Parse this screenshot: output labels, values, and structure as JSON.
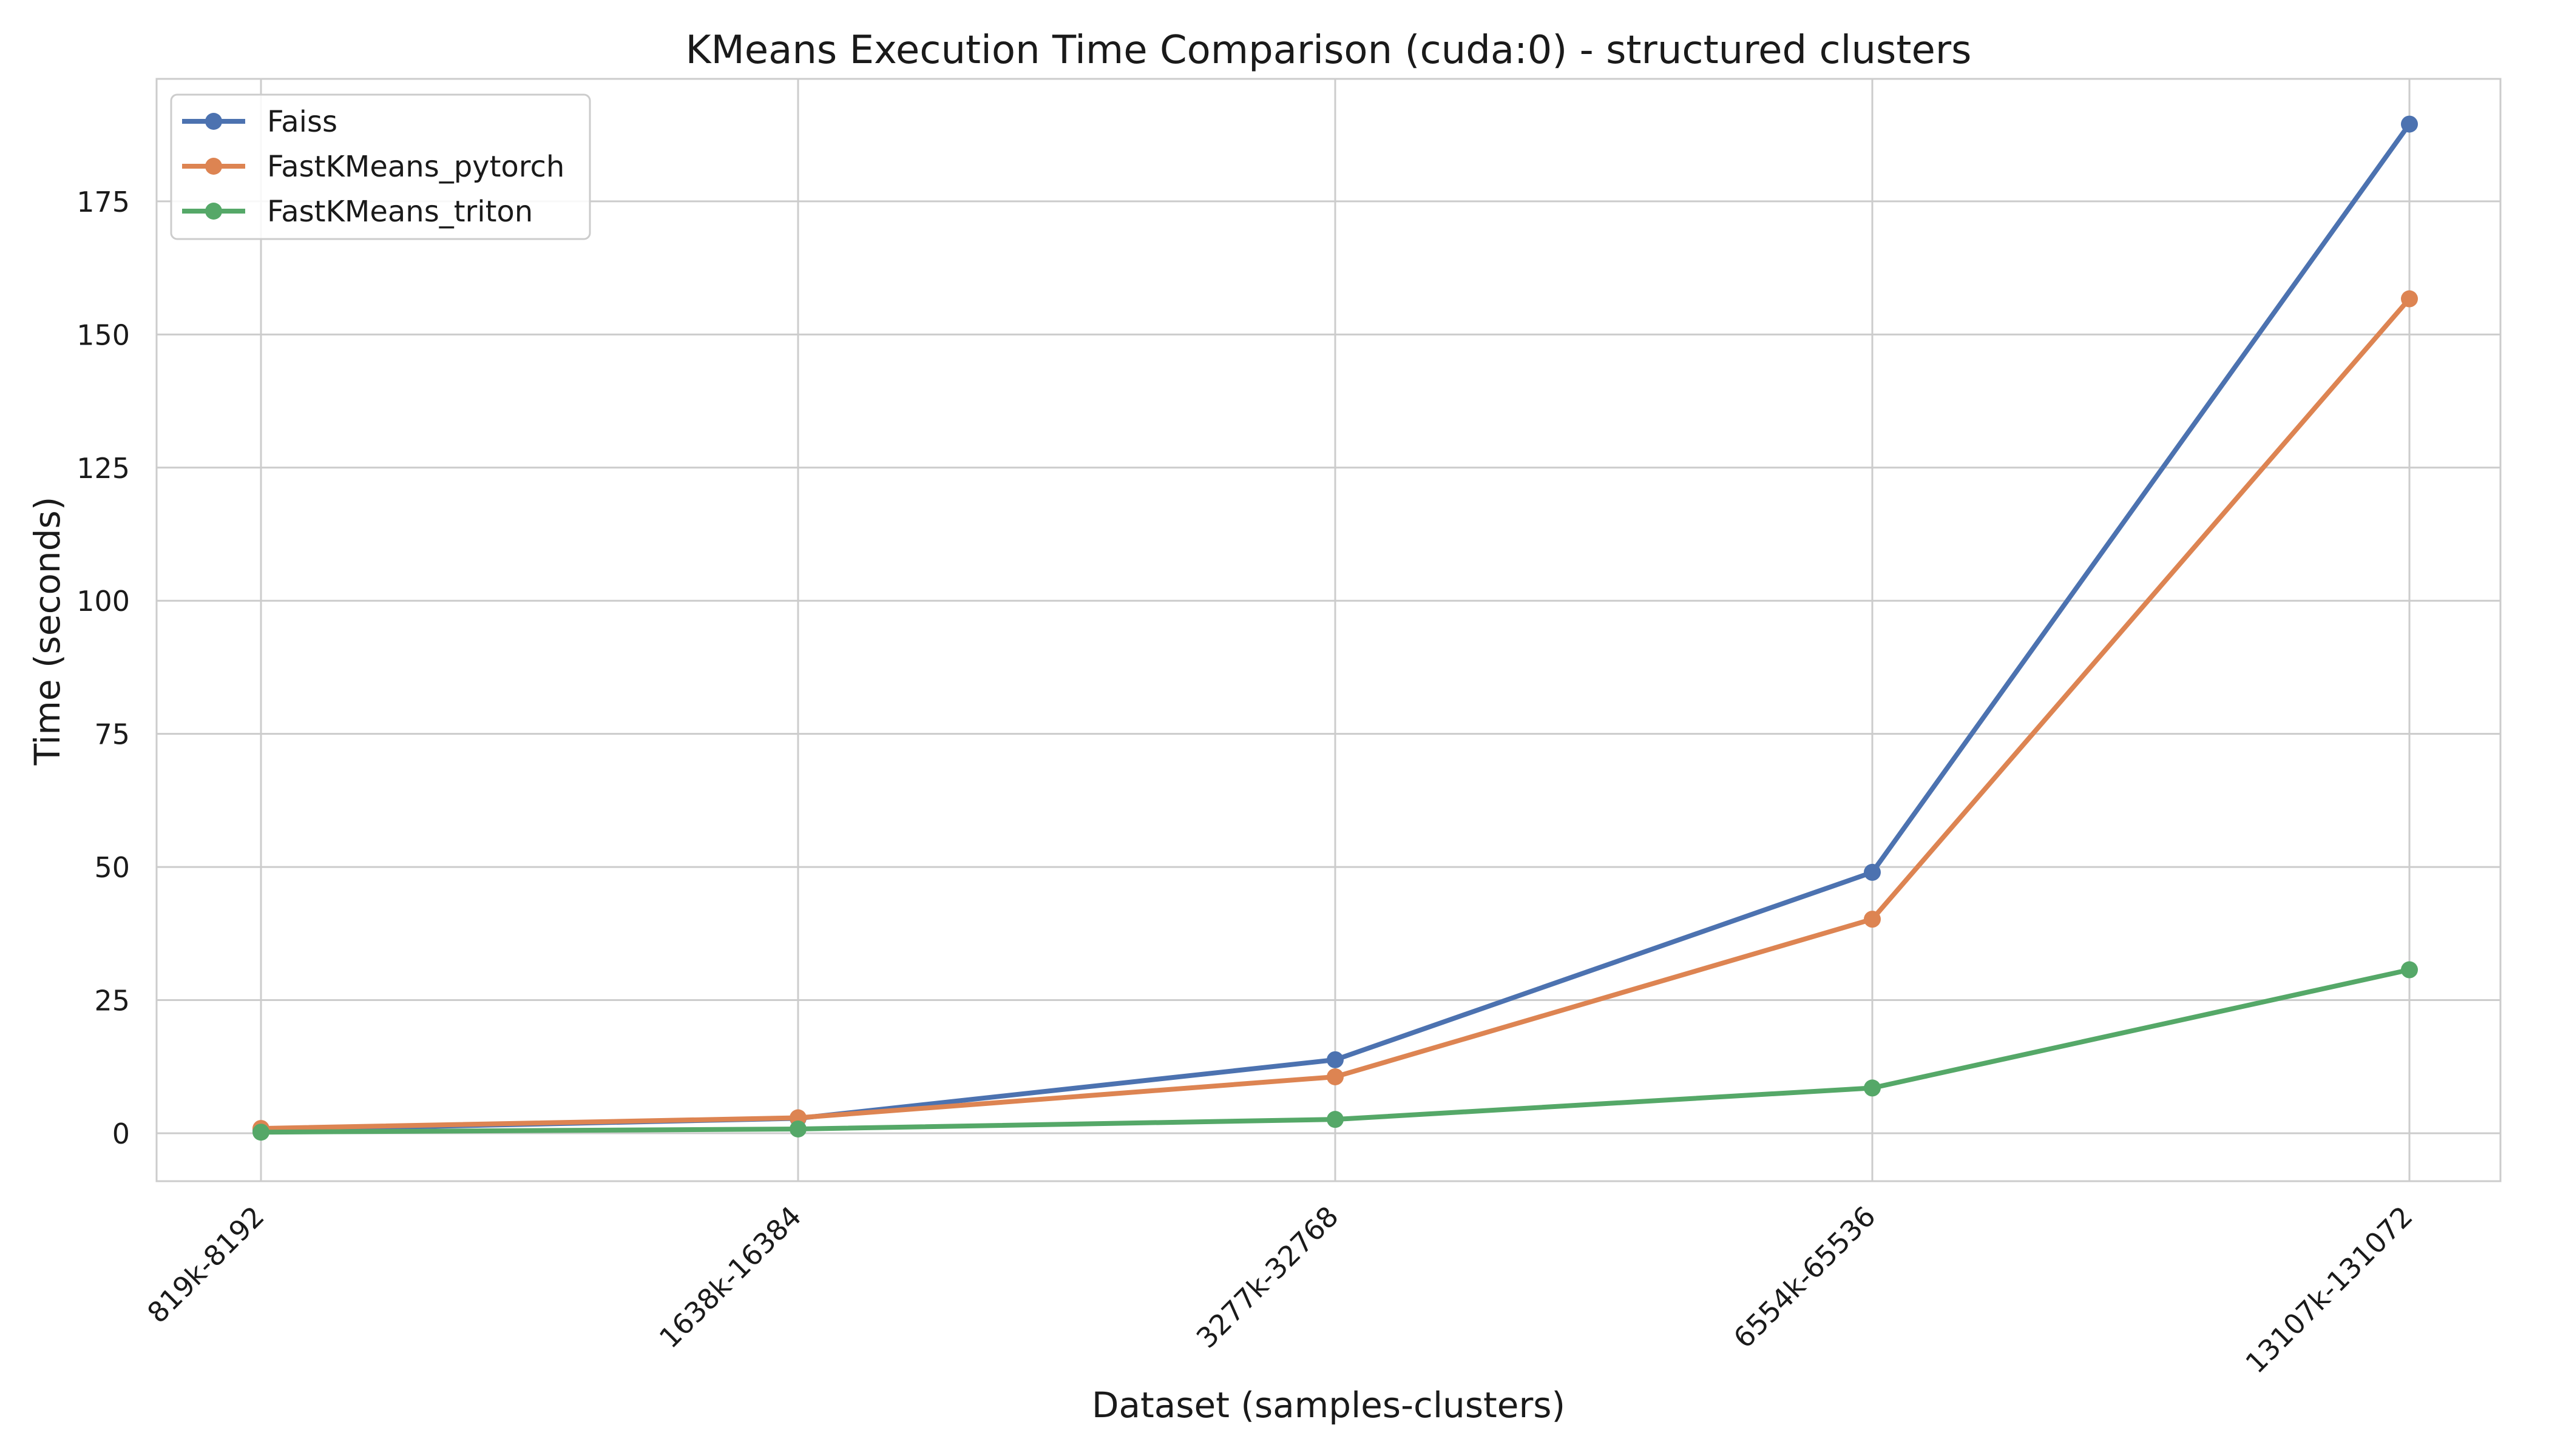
{
  "chart_data": {
    "type": "line",
    "title": "KMeans Execution Time Comparison (cuda:0) - structured clusters",
    "xlabel": "Dataset (samples-clusters)",
    "ylabel": "Time (seconds)",
    "categories": [
      "819k-8192",
      "1638k-16384",
      "3277k-32768",
      "6554k-65536",
      "13107k-131072"
    ],
    "yticks": [
      "0",
      "25",
      "50",
      "75",
      "100",
      "125",
      "150",
      "175"
    ],
    "ylim": [
      -9,
      198
    ],
    "grid": true,
    "legend_position": "top-left",
    "series": [
      {
        "name": "Faiss",
        "color": "#4c72b0",
        "values": [
          0.6,
          2.8,
          13.8,
          49.0,
          189.5
        ]
      },
      {
        "name": "FastKMeans_pytorch",
        "color": "#dd8452",
        "values": [
          0.9,
          2.9,
          10.6,
          40.2,
          156.7
        ]
      },
      {
        "name": "FastKMeans_triton",
        "color": "#55a868",
        "values": [
          0.2,
          0.8,
          2.6,
          8.5,
          30.7
        ]
      }
    ]
  }
}
